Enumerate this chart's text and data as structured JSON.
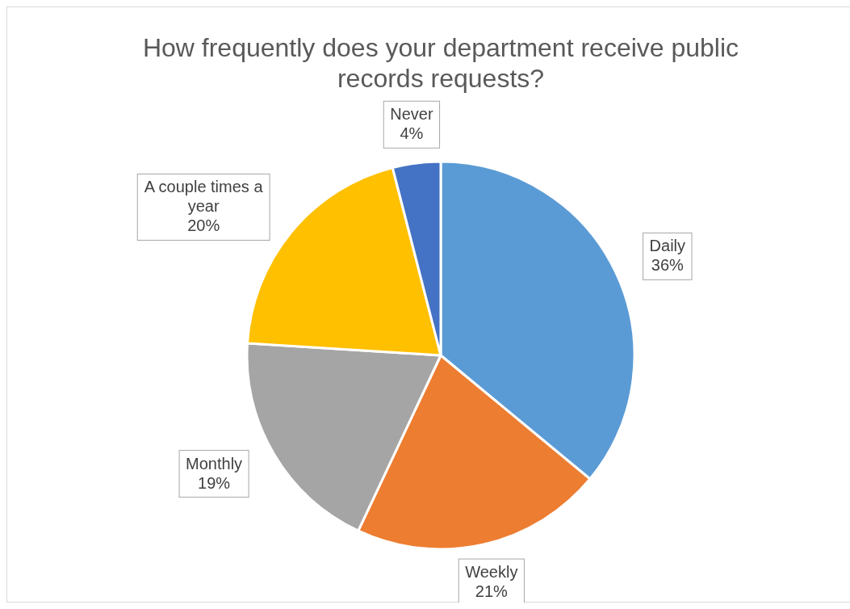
{
  "chart_data": {
    "type": "pie",
    "title": "How frequently does your department receive public records requests?",
    "categories": [
      "Daily",
      "Weekly",
      "Monthly",
      "A couple times a year",
      "Never"
    ],
    "values": [
      36,
      21,
      19,
      20,
      4
    ],
    "value_labels": [
      "36%",
      "21%",
      "19%",
      "20%",
      "4%"
    ],
    "colors": [
      "#5b9bd5",
      "#ed7d31",
      "#a5a5a5",
      "#ffc000",
      "#4472c4"
    ]
  }
}
